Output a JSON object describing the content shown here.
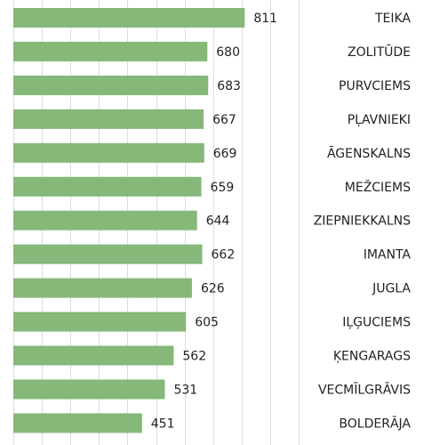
{
  "chart_data": {
    "type": "bar",
    "orientation": "horizontal",
    "categories": [
      "TEIKA",
      "ZOLITŪDE",
      "PURVCIEMS",
      "PĻAVNIEKI",
      "ĀGENSKALNS",
      "MEŽCIEMS",
      "ZIEPNIEKKALNS",
      "IMANTA",
      "JUGLA",
      "IĻĢUCIEMS",
      "ĶENGARAGS",
      "VECMĪLGRĀVIS",
      "BOLDERĀJA"
    ],
    "values": [
      811,
      680,
      683,
      667,
      669,
      659,
      644,
      662,
      626,
      605,
      562,
      531,
      451
    ],
    "color": "#85b879",
    "xlim": [
      0,
      1000
    ],
    "xticks": [
      0,
      100,
      200,
      300,
      400,
      500,
      600,
      700,
      800,
      900,
      1000
    ],
    "grid": true
  }
}
